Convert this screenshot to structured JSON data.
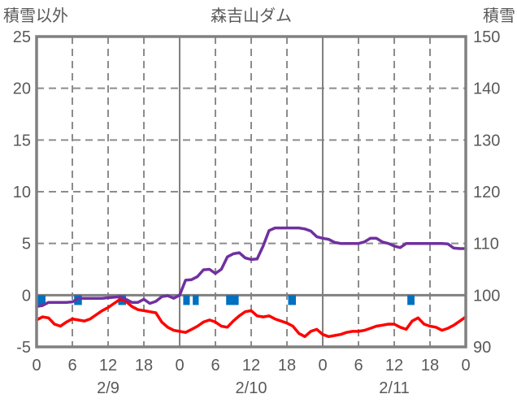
{
  "header": {
    "left_axis_title": "積雪以外",
    "title": "森吉山ダム",
    "right_axis_title": "積雪"
  },
  "colors": {
    "axis": "#808080",
    "grid": "#8c8c8c",
    "text": "#595959",
    "temperature_line": "#ff0000",
    "snow_depth_line": "#7030a0",
    "precip_bar": "#0070c0",
    "background": "#ffffff"
  },
  "chart_data": {
    "type": "line",
    "title": "森吉山ダム",
    "legend": "none",
    "grid": "dashed gray, solid lines at day boundaries and zero line",
    "left_axis": {
      "title": "積雪以外",
      "min": -5,
      "max": 25,
      "ticks": [
        25,
        20,
        15,
        10,
        5,
        0,
        -5
      ]
    },
    "right_axis": {
      "title": "積雪",
      "min": 90,
      "max": 150,
      "ticks": [
        150,
        140,
        130,
        120,
        110,
        100,
        90
      ]
    },
    "x_axis": {
      "hours_span": 72,
      "tick_hours": [
        0,
        6,
        12,
        18,
        24,
        30,
        36,
        42,
        48,
        54,
        60,
        66,
        72
      ],
      "tick_labels": [
        "0",
        "6",
        "12",
        "18",
        "0",
        "6",
        "12",
        "18",
        "0",
        "6",
        "12",
        "18",
        "0"
      ],
      "date_labels": [
        {
          "label": "2/9",
          "hour": 12
        },
        {
          "label": "2/10",
          "hour": 36
        },
        {
          "label": "2/11",
          "hour": 60
        }
      ],
      "dashed_vertical_hours": [
        6,
        12,
        18,
        30,
        36,
        42,
        54,
        60,
        66
      ],
      "solid_vertical_hours": [
        24,
        48
      ]
    },
    "dashed_horizontal_left_values": [
      20,
      15,
      10,
      5
    ],
    "zero_line_left_value": 0,
    "series": [
      {
        "name": "temperature",
        "axis": "left",
        "color": "#ff0000",
        "values": [
          -2.4,
          -2.1,
          -2.2,
          -2.8,
          -3.0,
          -2.6,
          -2.3,
          -2.4,
          -2.5,
          -2.3,
          -1.9,
          -1.5,
          -1.2,
          -0.8,
          -0.4,
          -0.6,
          -1.1,
          -1.4,
          -1.5,
          -1.6,
          -1.7,
          -2.6,
          -3.1,
          -3.4,
          -3.5,
          -3.6,
          -3.3,
          -3.0,
          -2.6,
          -2.4,
          -2.6,
          -3.0,
          -3.1,
          -2.5,
          -2.0,
          -1.6,
          -1.5,
          -2.0,
          -2.1,
          -2.0,
          -2.3,
          -2.5,
          -2.7,
          -3.0,
          -3.7,
          -4.0,
          -3.5,
          -3.3,
          -3.8,
          -4.0,
          -3.9,
          -3.8,
          -3.6,
          -3.5,
          -3.5,
          -3.4,
          -3.2,
          -3.0,
          -2.9,
          -2.8,
          -2.8,
          -3.1,
          -3.3,
          -2.5,
          -2.2,
          -2.8,
          -3.0,
          -3.1,
          -3.4,
          -3.2,
          -2.9,
          -2.5,
          -2.1
        ]
      },
      {
        "name": "snow_depth",
        "axis": "right",
        "color": "#7030a0",
        "values": [
          97.8,
          98.0,
          98.6,
          98.6,
          98.6,
          98.6,
          98.7,
          99.4,
          99.4,
          99.4,
          99.4,
          99.4,
          99.5,
          99.6,
          99.7,
          99.2,
          98.6,
          98.6,
          99.2,
          98.4,
          98.8,
          99.7,
          99.9,
          99.4,
          100.0,
          102.9,
          103.0,
          103.6,
          104.9,
          105.0,
          104.2,
          105.0,
          107.4,
          108.0,
          108.2,
          107.2,
          106.9,
          107.0,
          109.5,
          112.5,
          113.0,
          113.0,
          113.0,
          113.0,
          113.0,
          112.8,
          112.4,
          111.3,
          111.0,
          110.8,
          110.2,
          110.0,
          110.0,
          110.0,
          110.0,
          110.3,
          111.0,
          111.0,
          110.3,
          110.0,
          109.5,
          109.2,
          110.0,
          110.0,
          110.0,
          110.0,
          110.0,
          110.0,
          110.0,
          109.9,
          109.1,
          109.0,
          109.0
        ]
      }
    ],
    "precipitation_bars": {
      "color": "#0070c0",
      "depth_left_units": 0.95,
      "intervals_hours": [
        [
          0.0,
          1.5
        ],
        [
          6.3,
          7.6
        ],
        [
          13.7,
          15.0
        ],
        [
          24.6,
          25.7
        ],
        [
          26.2,
          27.2
        ],
        [
          31.8,
          33.9
        ],
        [
          42.2,
          43.5
        ],
        [
          62.2,
          63.4
        ]
      ]
    }
  }
}
